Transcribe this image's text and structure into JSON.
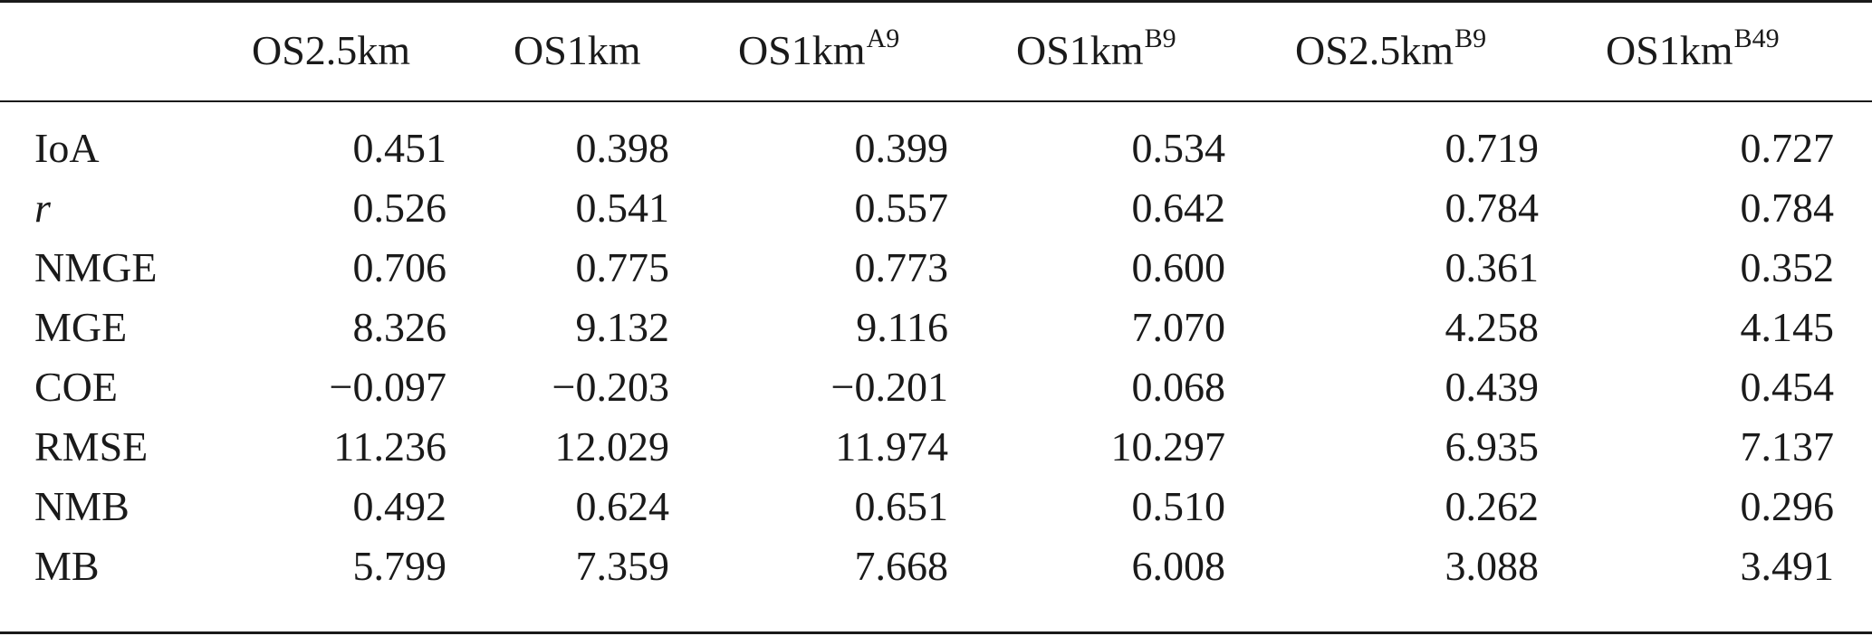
{
  "table": {
    "columns": [
      {
        "base": "OS2.5km",
        "sup": ""
      },
      {
        "base": "OS1km",
        "sup": ""
      },
      {
        "base": "OS1km",
        "sup": "A9"
      },
      {
        "base": "OS1km",
        "sup": "B9"
      },
      {
        "base": "OS2.5km",
        "sup": "B9"
      },
      {
        "base": "OS1km",
        "sup": "B49"
      }
    ],
    "rows": [
      {
        "label": "IoA",
        "values": [
          "0.451",
          "0.398",
          "0.399",
          "0.534",
          "0.719",
          "0.727"
        ]
      },
      {
        "label": "r",
        "values": [
          "0.526",
          "0.541",
          "0.557",
          "0.642",
          "0.784",
          "0.784"
        ]
      },
      {
        "label": "NMGE",
        "values": [
          "0.706",
          "0.775",
          "0.773",
          "0.600",
          "0.361",
          "0.352"
        ]
      },
      {
        "label": "MGE",
        "values": [
          "8.326",
          "9.132",
          "9.116",
          "7.070",
          "4.258",
          "4.145"
        ]
      },
      {
        "label": "COE",
        "values": [
          "−0.097",
          "−0.203",
          "−0.201",
          "0.068",
          "0.439",
          "0.454"
        ]
      },
      {
        "label": "RMSE",
        "values": [
          "11.236",
          "12.029",
          "11.974",
          "10.297",
          "6.935",
          "7.137"
        ]
      },
      {
        "label": "NMB",
        "values": [
          "0.492",
          "0.624",
          "0.651",
          "0.510",
          "0.262",
          "0.296"
        ]
      },
      {
        "label": "MB",
        "values": [
          "5.799",
          "7.359",
          "7.668",
          "6.008",
          "3.088",
          "3.491"
        ]
      }
    ]
  }
}
